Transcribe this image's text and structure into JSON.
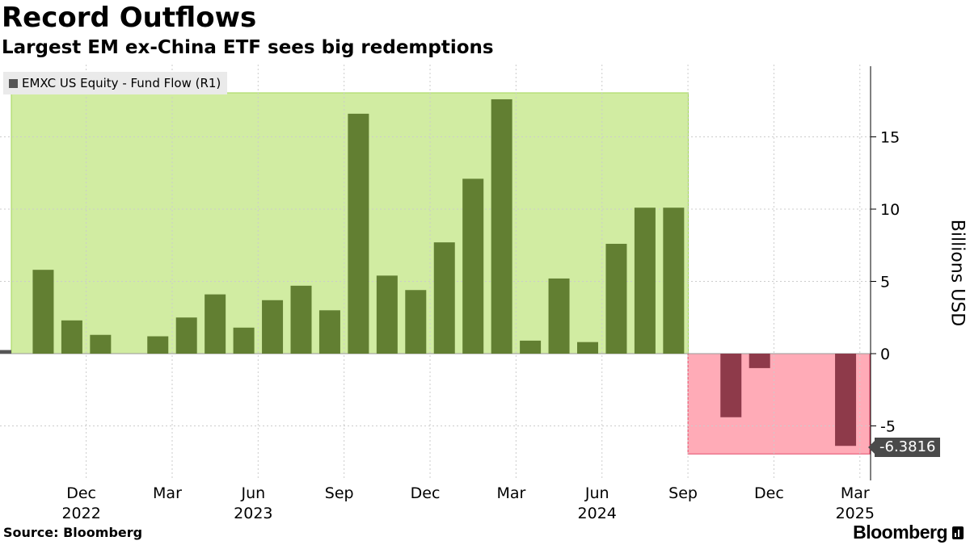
{
  "header": {
    "title": "Record Outflows",
    "subtitle": "Largest EM ex-China ETF sees big redemptions"
  },
  "legend": {
    "label": "EMXC US Equity - Fund Flow (R1)",
    "color": "#555555"
  },
  "source": "Source: Bloomberg",
  "brand": "Bloomberg",
  "colors": {
    "positive_bar": "#627f32",
    "negative_bar": "#8e3a4a",
    "positive_region": "#d1eca2",
    "positive_region_border": "#a3d65a",
    "negative_region": "#ffabb7",
    "negative_region_border": "#e34a68",
    "grid": "#cccccc"
  },
  "chart_data": {
    "type": "bar",
    "ylabel": "Billions USD",
    "ylim": [
      -8.5,
      19.5
    ],
    "yticks": [
      -5,
      0,
      5,
      10,
      15
    ],
    "grid": true,
    "legend_position": "top-left",
    "last_value_label": "-6.3816",
    "categories": [
      "2022-10",
      "2022-11",
      "2022-12",
      "2023-01",
      "2023-02",
      "2023-03",
      "2023-04",
      "2023-05",
      "2023-06",
      "2023-07",
      "2023-08",
      "2023-09",
      "2023-10",
      "2023-11",
      "2023-12",
      "2024-01",
      "2024-02",
      "2024-03",
      "2024-04",
      "2024-05",
      "2024-06",
      "2024-07",
      "2024-08",
      "2024-09",
      "2024-10",
      "2024-11",
      "2024-12",
      "2025-01",
      "2025-02",
      "2025-03"
    ],
    "values": [
      0.25,
      5.8,
      2.3,
      1.3,
      0,
      1.2,
      2.5,
      4.1,
      1.8,
      3.7,
      4.7,
      3.0,
      16.6,
      5.4,
      4.4,
      7.7,
      12.1,
      17.6,
      0.9,
      5.2,
      0.8,
      7.6,
      10.1,
      10.1,
      0,
      -4.4,
      -1.0,
      0,
      0,
      -6.3816
    ],
    "x_month_labels": [
      {
        "month": "2022-12",
        "label": "Dec"
      },
      {
        "month": "2023-03",
        "label": "Mar"
      },
      {
        "month": "2023-06",
        "label": "Jun"
      },
      {
        "month": "2023-09",
        "label": "Sep"
      },
      {
        "month": "2023-12",
        "label": "Dec"
      },
      {
        "month": "2024-03",
        "label": "Mar"
      },
      {
        "month": "2024-06",
        "label": "Jun"
      },
      {
        "month": "2024-09",
        "label": "Sep"
      },
      {
        "month": "2024-12",
        "label": "Dec"
      },
      {
        "month": "2025-03",
        "label": "Mar"
      }
    ],
    "x_year_labels": [
      {
        "month": "2022-12",
        "label": "2022"
      },
      {
        "month": "2023-06",
        "label": "2023"
      },
      {
        "month": "2024-06",
        "label": "2024"
      },
      {
        "month": "2025-03",
        "label": "2025"
      }
    ],
    "highlight_regions": [
      {
        "from": "2022-10",
        "to": "2024-09",
        "kind": "positive"
      },
      {
        "from": "2024-10",
        "to": "2025-03",
        "kind": "negative"
      }
    ]
  }
}
